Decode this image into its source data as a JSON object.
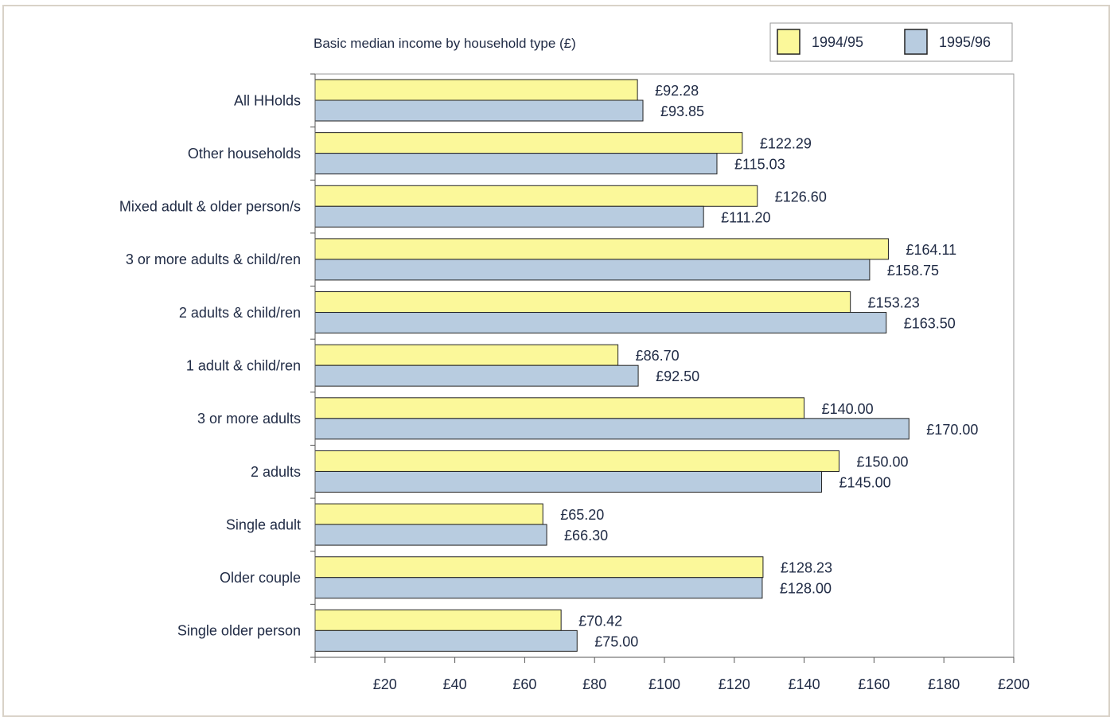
{
  "chart_data": {
    "type": "bar",
    "orientation": "horizontal",
    "title": "Basic median income by household type (£)",
    "xlabel": "",
    "ylabel": "",
    "xlim": [
      0,
      200
    ],
    "ticks": [
      "£20",
      "£40",
      "£60",
      "£80",
      "£100",
      "£120",
      "£140",
      "£160",
      "£180",
      "£200"
    ],
    "tick_values": [
      20,
      40,
      60,
      80,
      100,
      120,
      140,
      160,
      180,
      200
    ],
    "grid": false,
    "legend_position": "top-right",
    "categories": [
      "All HHolds",
      "Other households",
      "Mixed adult & older person/s",
      "3 or more adults & child/ren",
      "2 adults & child/ren",
      "1 adult & child/ren",
      "3 or more adults",
      "2 adults",
      "Single adult",
      "Older couple",
      "Single older person"
    ],
    "series": [
      {
        "name": "1994/95",
        "color": "#fbf89a",
        "values": [
          92.28,
          122.29,
          126.6,
          164.11,
          153.23,
          86.7,
          140.0,
          150.0,
          65.2,
          128.23,
          70.42
        ],
        "labels": [
          "£92.28",
          "£122.29",
          "£126.60",
          "£164.11",
          "£153.23",
          "£86.70",
          "£140.00",
          "£150.00",
          "£65.20",
          "£128.23",
          "£70.42"
        ]
      },
      {
        "name": "1995/96",
        "color": "#b8cce0",
        "values": [
          93.85,
          115.03,
          111.2,
          158.75,
          163.5,
          92.5,
          170.0,
          145.0,
          66.3,
          128.0,
          75.0
        ],
        "labels": [
          "£93.85",
          "£115.03",
          "£111.20",
          "£158.75",
          "£163.50",
          "£92.50",
          "£170.00",
          "£145.00",
          "£66.30",
          "£128.00",
          "£75.00"
        ]
      }
    ]
  }
}
